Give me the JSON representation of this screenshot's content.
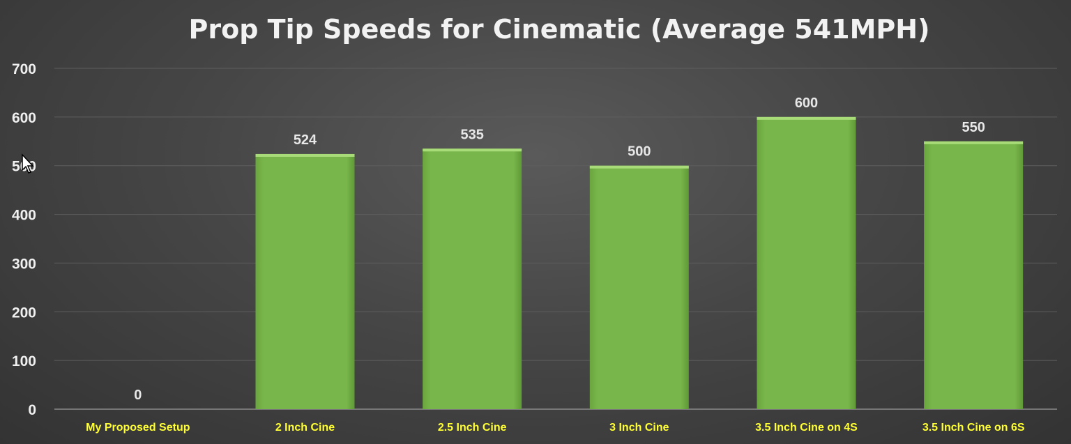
{
  "chart_data": {
    "type": "bar",
    "title": "Prop Tip Speeds for Cinematic (Average 541MPH)",
    "categories": [
      "My Proposed Setup",
      "2 Inch Cine",
      "2.5 Inch Cine",
      "3 Inch Cine",
      "3.5 Inch Cine on 4S",
      "3.5 Inch Cine on 6S"
    ],
    "values": [
      0,
      524,
      535,
      500,
      600,
      550
    ],
    "data_labels": [
      "0",
      "524",
      "535",
      "500",
      "600",
      "550"
    ],
    "yticks": [
      "0",
      "100",
      "200",
      "300",
      "400",
      "500",
      "600",
      "700"
    ],
    "ylim": [
      0,
      700
    ],
    "grid": true,
    "legend": "none",
    "colors": {
      "bar": "#78b54a",
      "bar_top": "#a8dc78",
      "xtick_label": "#ffff33",
      "grid": "#5e5e5e"
    }
  }
}
